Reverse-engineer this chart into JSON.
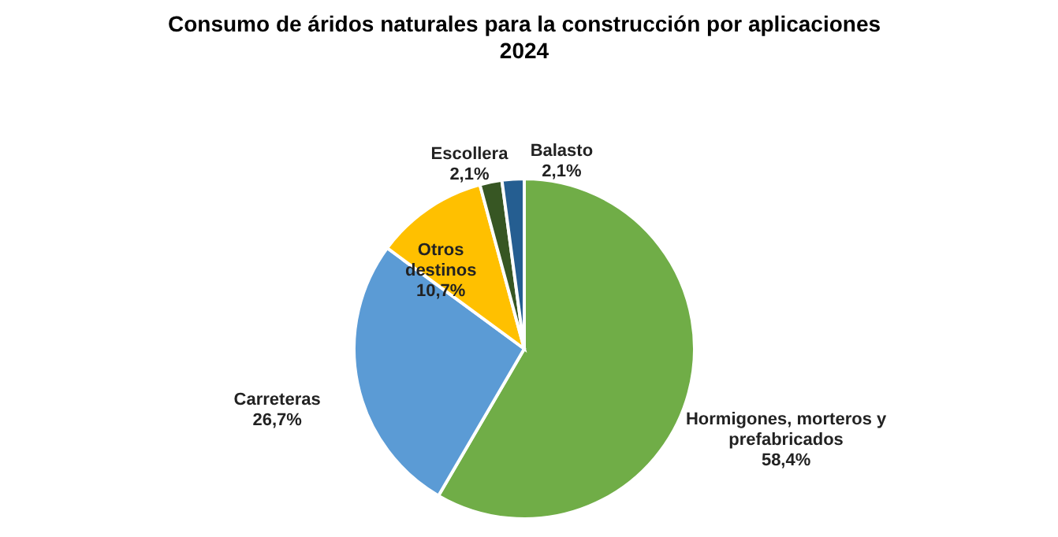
{
  "chart_data": {
    "type": "pie",
    "title": "Consumo de áridos naturales para la construcción por aplicaciones",
    "subtitle": "2024",
    "categories": [
      "Hormigones, morteros y prefabricados",
      "Carreteras",
      "Otros destinos",
      "Escollera",
      "Balasto"
    ],
    "values": [
      58.4,
      26.7,
      10.7,
      2.1,
      2.1
    ],
    "colors": [
      "#70ad47",
      "#5b9bd5",
      "#ffc000",
      "#375623",
      "#255e91"
    ],
    "value_labels": [
      "58,4%",
      "26,7%",
      "10,7%",
      "2,1%",
      "2,1%"
    ],
    "legend": false
  }
}
